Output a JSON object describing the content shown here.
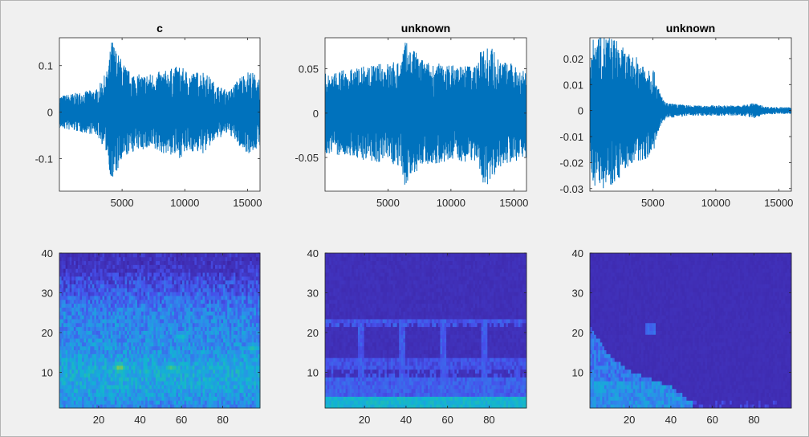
{
  "chart_data": [
    {
      "type": "line",
      "title": "c",
      "xlim": [
        1,
        16000
      ],
      "ylim": [
        -0.17,
        0.16
      ],
      "xticks": [
        5000,
        10000,
        15000
      ],
      "xtick_labels": [
        "5000",
        "10000",
        "15000"
      ],
      "yticks": [
        0.1,
        0,
        -0.1
      ],
      "ytick_labels": [
        "0.1",
        "0",
        "-0.1"
      ],
      "color": "#0072bd",
      "envelope": {
        "x": [
          0,
          1000,
          2000,
          3000,
          3800,
          4200,
          4600,
          5500,
          6500,
          7500,
          8500,
          9500,
          10500,
          11500,
          12500,
          13500,
          14500,
          15200,
          16000
        ],
        "amp": [
          0.035,
          0.04,
          0.045,
          0.05,
          0.09,
          0.16,
          0.13,
          0.09,
          0.08,
          0.085,
          0.09,
          0.1,
          0.085,
          0.09,
          0.06,
          0.045,
          0.08,
          0.09,
          0.075
        ]
      }
    },
    {
      "type": "line",
      "title": "unknown",
      "xlim": [
        1,
        16000
      ],
      "ylim": [
        -0.088,
        0.085
      ],
      "xticks": [
        5000,
        10000,
        15000
      ],
      "xtick_labels": [
        "5000",
        "10000",
        "15000"
      ],
      "yticks": [
        0.05,
        0,
        -0.05
      ],
      "ytick_labels": [
        "0.05",
        "0",
        "-0.05"
      ],
      "color": "#0072bd",
      "envelope": {
        "x": [
          0,
          2000,
          4000,
          6000,
          6300,
          8000,
          10000,
          12000,
          12700,
          14000,
          16000
        ],
        "amp": [
          0.045,
          0.05,
          0.055,
          0.06,
          0.082,
          0.058,
          0.055,
          0.055,
          0.085,
          0.06,
          0.05
        ]
      }
    },
    {
      "type": "line",
      "title": "unknown",
      "xlim": [
        1,
        16000
      ],
      "ylim": [
        -0.031,
        0.028
      ],
      "xticks": [
        5000,
        10000,
        15000
      ],
      "xtick_labels": [
        "5000",
        "10000",
        "15000"
      ],
      "yticks": [
        0.02,
        0.01,
        0,
        -0.01,
        -0.02,
        -0.03
      ],
      "ytick_labels": [
        "0.02",
        "0.01",
        "0",
        "-0.01",
        "-0.02",
        "-0.03"
      ],
      "color": "#0072bd",
      "envelope": {
        "x": [
          0,
          500,
          1000,
          2000,
          3000,
          4000,
          5000,
          5500,
          6000,
          7000,
          8000,
          10000,
          12000,
          13000,
          14000,
          16000
        ],
        "amp": [
          0.025,
          0.03,
          0.03,
          0.028,
          0.022,
          0.02,
          0.017,
          0.008,
          0.003,
          0.0025,
          0.002,
          0.002,
          0.002,
          0.003,
          0.0015,
          0.0012
        ]
      }
    },
    {
      "type": "heatmap",
      "xlim": [
        1,
        98
      ],
      "ylim": [
        1,
        40
      ],
      "xticks": [
        20,
        40,
        60,
        80
      ],
      "xtick_labels": [
        "20",
        "40",
        "60",
        "80"
      ],
      "yticks": [
        10,
        20,
        30,
        40
      ],
      "ytick_labels": [
        "10",
        "20",
        "30",
        "40"
      ],
      "colormap": "parula",
      "energy_profile": {
        "y": [
          1,
          5,
          10,
          15,
          20,
          25,
          30,
          34,
          36,
          40
        ],
        "level": [
          0.3,
          0.38,
          0.42,
          0.34,
          0.3,
          0.28,
          0.18,
          0.12,
          0.03,
          0.0
        ]
      },
      "hotspots": [
        {
          "x": 30,
          "y": 11,
          "level": 0.68
        },
        {
          "x": 55,
          "y": 11,
          "level": 0.6
        },
        {
          "x": 60,
          "y": 19,
          "level": 0.45
        },
        {
          "x": 95,
          "y": 16,
          "level": 0.5
        }
      ]
    },
    {
      "type": "heatmap",
      "xlim": [
        1,
        98
      ],
      "ylim": [
        1,
        40
      ],
      "xticks": [
        20,
        40,
        60,
        80
      ],
      "xtick_labels": [
        "20",
        "40",
        "60",
        "80"
      ],
      "yticks": [
        10,
        20,
        30,
        40
      ],
      "ytick_labels": [
        "10",
        "20",
        "30",
        "40"
      ],
      "colormap": "parula",
      "bands": [
        {
          "y": [
            1,
            3
          ],
          "level": 0.45
        },
        {
          "y": [
            3,
            8
          ],
          "level": 0.18
        },
        {
          "y": [
            11,
            13
          ],
          "level": 0.14
        },
        {
          "y": [
            22,
            23
          ],
          "level": 0.16
        }
      ],
      "onsets_x": [
        18,
        38,
        58,
        78
      ]
    },
    {
      "type": "heatmap",
      "xlim": [
        1,
        98
      ],
      "ylim": [
        1,
        40
      ],
      "xticks": [
        20,
        40,
        60,
        80
      ],
      "xtick_labels": [
        "20",
        "40",
        "60",
        "80"
      ],
      "yticks": [
        10,
        20,
        30,
        40
      ],
      "ytick_labels": [
        "10",
        "20",
        "30",
        "40"
      ],
      "colormap": "parula",
      "active_region": {
        "x": [
          1,
          5,
          10,
          20,
          30,
          40,
          45,
          50
        ],
        "top_y": [
          21,
          18,
          14,
          10,
          8,
          6,
          4,
          2
        ]
      },
      "hotspots": [
        {
          "x": 30,
          "y": 21,
          "level": 0.22
        },
        {
          "x": 5,
          "y": 6,
          "level": 0.4
        }
      ]
    }
  ]
}
